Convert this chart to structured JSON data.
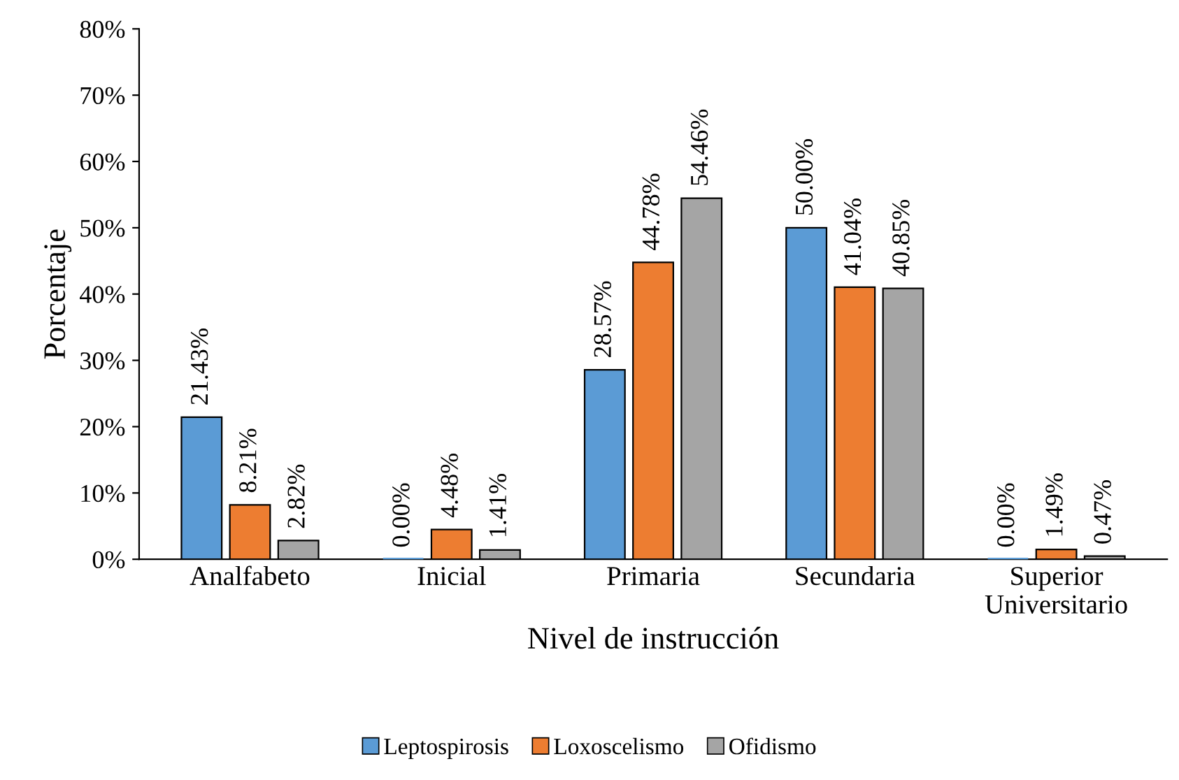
{
  "chart_data": {
    "type": "bar",
    "xlabel": "Nivel de instrucción",
    "ylabel": "Porcentaje",
    "categories": [
      "Analfabeto",
      "Inicial",
      "Primaria",
      "Secundaria",
      "Superior\nUniversitario"
    ],
    "series": [
      {
        "name": "Leptospirosis",
        "color": "#5b9bd5",
        "values": [
          21.43,
          0.0,
          28.57,
          50.0,
          0.0
        ],
        "value_labels": [
          "21.43%",
          "0.00%",
          "28.57%",
          "50.00%",
          "0.00%"
        ]
      },
      {
        "name": "Loxoscelismo",
        "color": "#ed7d31",
        "values": [
          8.21,
          4.48,
          44.78,
          41.04,
          1.49
        ],
        "value_labels": [
          "8.21%",
          "4.48%",
          "44.78%",
          "41.04%",
          "1.49%"
        ]
      },
      {
        "name": "Ofidismo",
        "color": "#a5a5a5",
        "values": [
          2.82,
          1.41,
          54.46,
          40.85,
          0.47
        ],
        "value_labels": [
          "2.82%",
          "1.41%",
          "54.46%",
          "40.85%",
          "0.47%"
        ]
      }
    ],
    "ylim": [
      0,
      80
    ],
    "yticks": [
      {
        "value": 0,
        "label": "0%"
      },
      {
        "value": 10,
        "label": "10%"
      },
      {
        "value": 20,
        "label": "20%"
      },
      {
        "value": 30,
        "label": "30%"
      },
      {
        "value": 40,
        "label": "40%"
      },
      {
        "value": 50,
        "label": "50%"
      },
      {
        "value": 60,
        "label": "60%"
      },
      {
        "value": 70,
        "label": "70%"
      },
      {
        "value": 80,
        "label": "80%"
      }
    ],
    "grid": false,
    "legend": "bottom"
  }
}
